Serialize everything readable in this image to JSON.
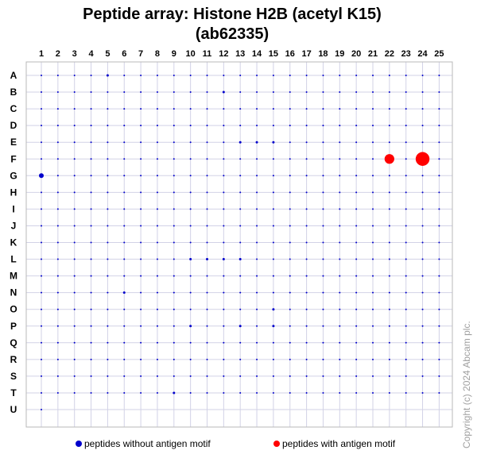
{
  "chart_data": {
    "type": "scatter",
    "title_line1": "Peptide array:  Histone H2B (acetyl K15)",
    "title_line2": "(ab62335)",
    "columns": [
      "1",
      "2",
      "3",
      "4",
      "5",
      "6",
      "7",
      "8",
      "9",
      "10",
      "11",
      "12",
      "13",
      "14",
      "15",
      "16",
      "17",
      "18",
      "19",
      "20",
      "21",
      "22",
      "23",
      "24",
      "25"
    ],
    "rows": [
      "A",
      "B",
      "C",
      "D",
      "E",
      "F",
      "G",
      "H",
      "I",
      "J",
      "K",
      "L",
      "M",
      "N",
      "O",
      "P",
      "Q",
      "R",
      "S",
      "T",
      "U"
    ],
    "last_row_columns": 1,
    "grid": true,
    "series": [
      {
        "name": "peptides without antigen motif",
        "color": "#0000cc",
        "strong_points": [
          {
            "row": "G",
            "col": 1,
            "value": 0.05
          }
        ],
        "slightly_elevated_points": [
          {
            "row": "A",
            "col": 5
          },
          {
            "row": "B",
            "col": 12
          },
          {
            "row": "E",
            "col": 13
          },
          {
            "row": "E",
            "col": 14
          },
          {
            "row": "E",
            "col": 15
          },
          {
            "row": "L",
            "col": 10
          },
          {
            "row": "L",
            "col": 11
          },
          {
            "row": "L",
            "col": 12
          },
          {
            "row": "L",
            "col": 13
          },
          {
            "row": "N",
            "col": 6
          },
          {
            "row": "O",
            "col": 15
          },
          {
            "row": "P",
            "col": 10
          },
          {
            "row": "P",
            "col": 13
          },
          {
            "row": "P",
            "col": 15
          },
          {
            "row": "T",
            "col": 9
          }
        ]
      },
      {
        "name": "peptides with antigen motif",
        "color": "#ff0000",
        "points": [
          {
            "row": "F",
            "col": 22,
            "value": 0.3
          },
          {
            "row": "F",
            "col": 24,
            "value": 0.8
          }
        ]
      }
    ],
    "legend_position": "bottom"
  },
  "copyright": "Copyright (c) 2024 Abcam plc."
}
